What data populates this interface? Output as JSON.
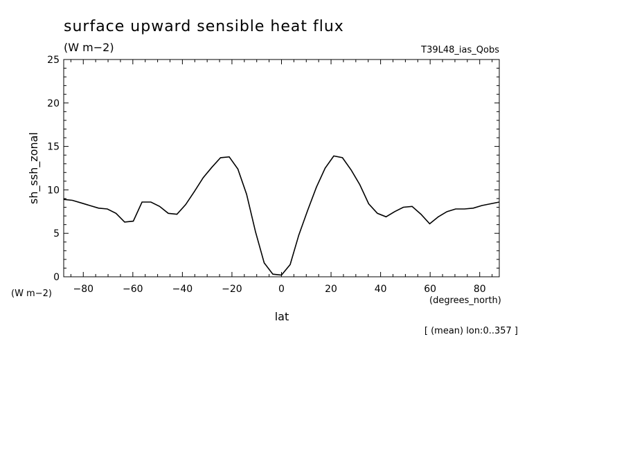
{
  "chart_data": {
    "type": "line",
    "title": "surface upward sensible heat flux",
    "subtitle": "(W m−2)",
    "run_label": "T39L48_ias_Qobs",
    "xlabel": "lat",
    "x_units": "(degrees_north)",
    "ylabel": "sh_ssh_zonal",
    "y_units": "(W m−2)",
    "footnote": "[ (mean) lon:0..357 ]",
    "xlim": [
      -87.9,
      87.9
    ],
    "ylim": [
      0,
      25
    ],
    "x_ticks": [
      -80,
      -60,
      -40,
      -20,
      0,
      20,
      40,
      60,
      80
    ],
    "x_tick_labels": [
      "−80",
      "−60",
      "−40",
      "−20",
      "0",
      "20",
      "40",
      "60",
      "80"
    ],
    "y_ticks": [
      0,
      5,
      10,
      15,
      20,
      25
    ],
    "y_tick_labels": [
      "0",
      "5",
      "10",
      "15",
      "20",
      "25"
    ],
    "grid": false,
    "line_color": "#000000",
    "series": [
      {
        "x": [
          -87.9,
          -84.4,
          -80.9,
          -77.4,
          -73.8,
          -70.3,
          -66.8,
          -63.3,
          -59.8,
          -56.3,
          -52.7,
          -49.2,
          -45.7,
          -42.2,
          -38.7,
          -35.2,
          -31.6,
          -28.1,
          -24.6,
          -21.1,
          -17.6,
          -14.1,
          -10.5,
          -7.0,
          -3.5,
          0.0,
          3.5,
          7.0,
          10.5,
          14.1,
          17.6,
          21.1,
          24.6,
          28.1,
          31.6,
          35.2,
          38.7,
          42.2,
          45.7,
          49.2,
          52.7,
          56.3,
          59.8,
          63.3,
          66.8,
          70.3,
          73.8,
          77.4,
          80.9,
          84.4,
          87.9
        ],
        "y": [
          8.9,
          8.8,
          8.5,
          8.2,
          7.9,
          7.8,
          7.3,
          6.3,
          6.4,
          8.6,
          8.6,
          8.1,
          7.3,
          7.2,
          8.3,
          9.8,
          11.4,
          12.6,
          13.7,
          13.8,
          12.4,
          9.5,
          5.2,
          1.6,
          0.3,
          0.2,
          1.4,
          4.8,
          7.6,
          10.3,
          12.5,
          13.9,
          13.7,
          12.3,
          10.6,
          8.4,
          7.3,
          6.9,
          7.5,
          8.0,
          8.1,
          7.2,
          6.1,
          6.9,
          7.5,
          7.8,
          7.8,
          7.9,
          8.2,
          8.4,
          8.6
        ]
      }
    ]
  }
}
